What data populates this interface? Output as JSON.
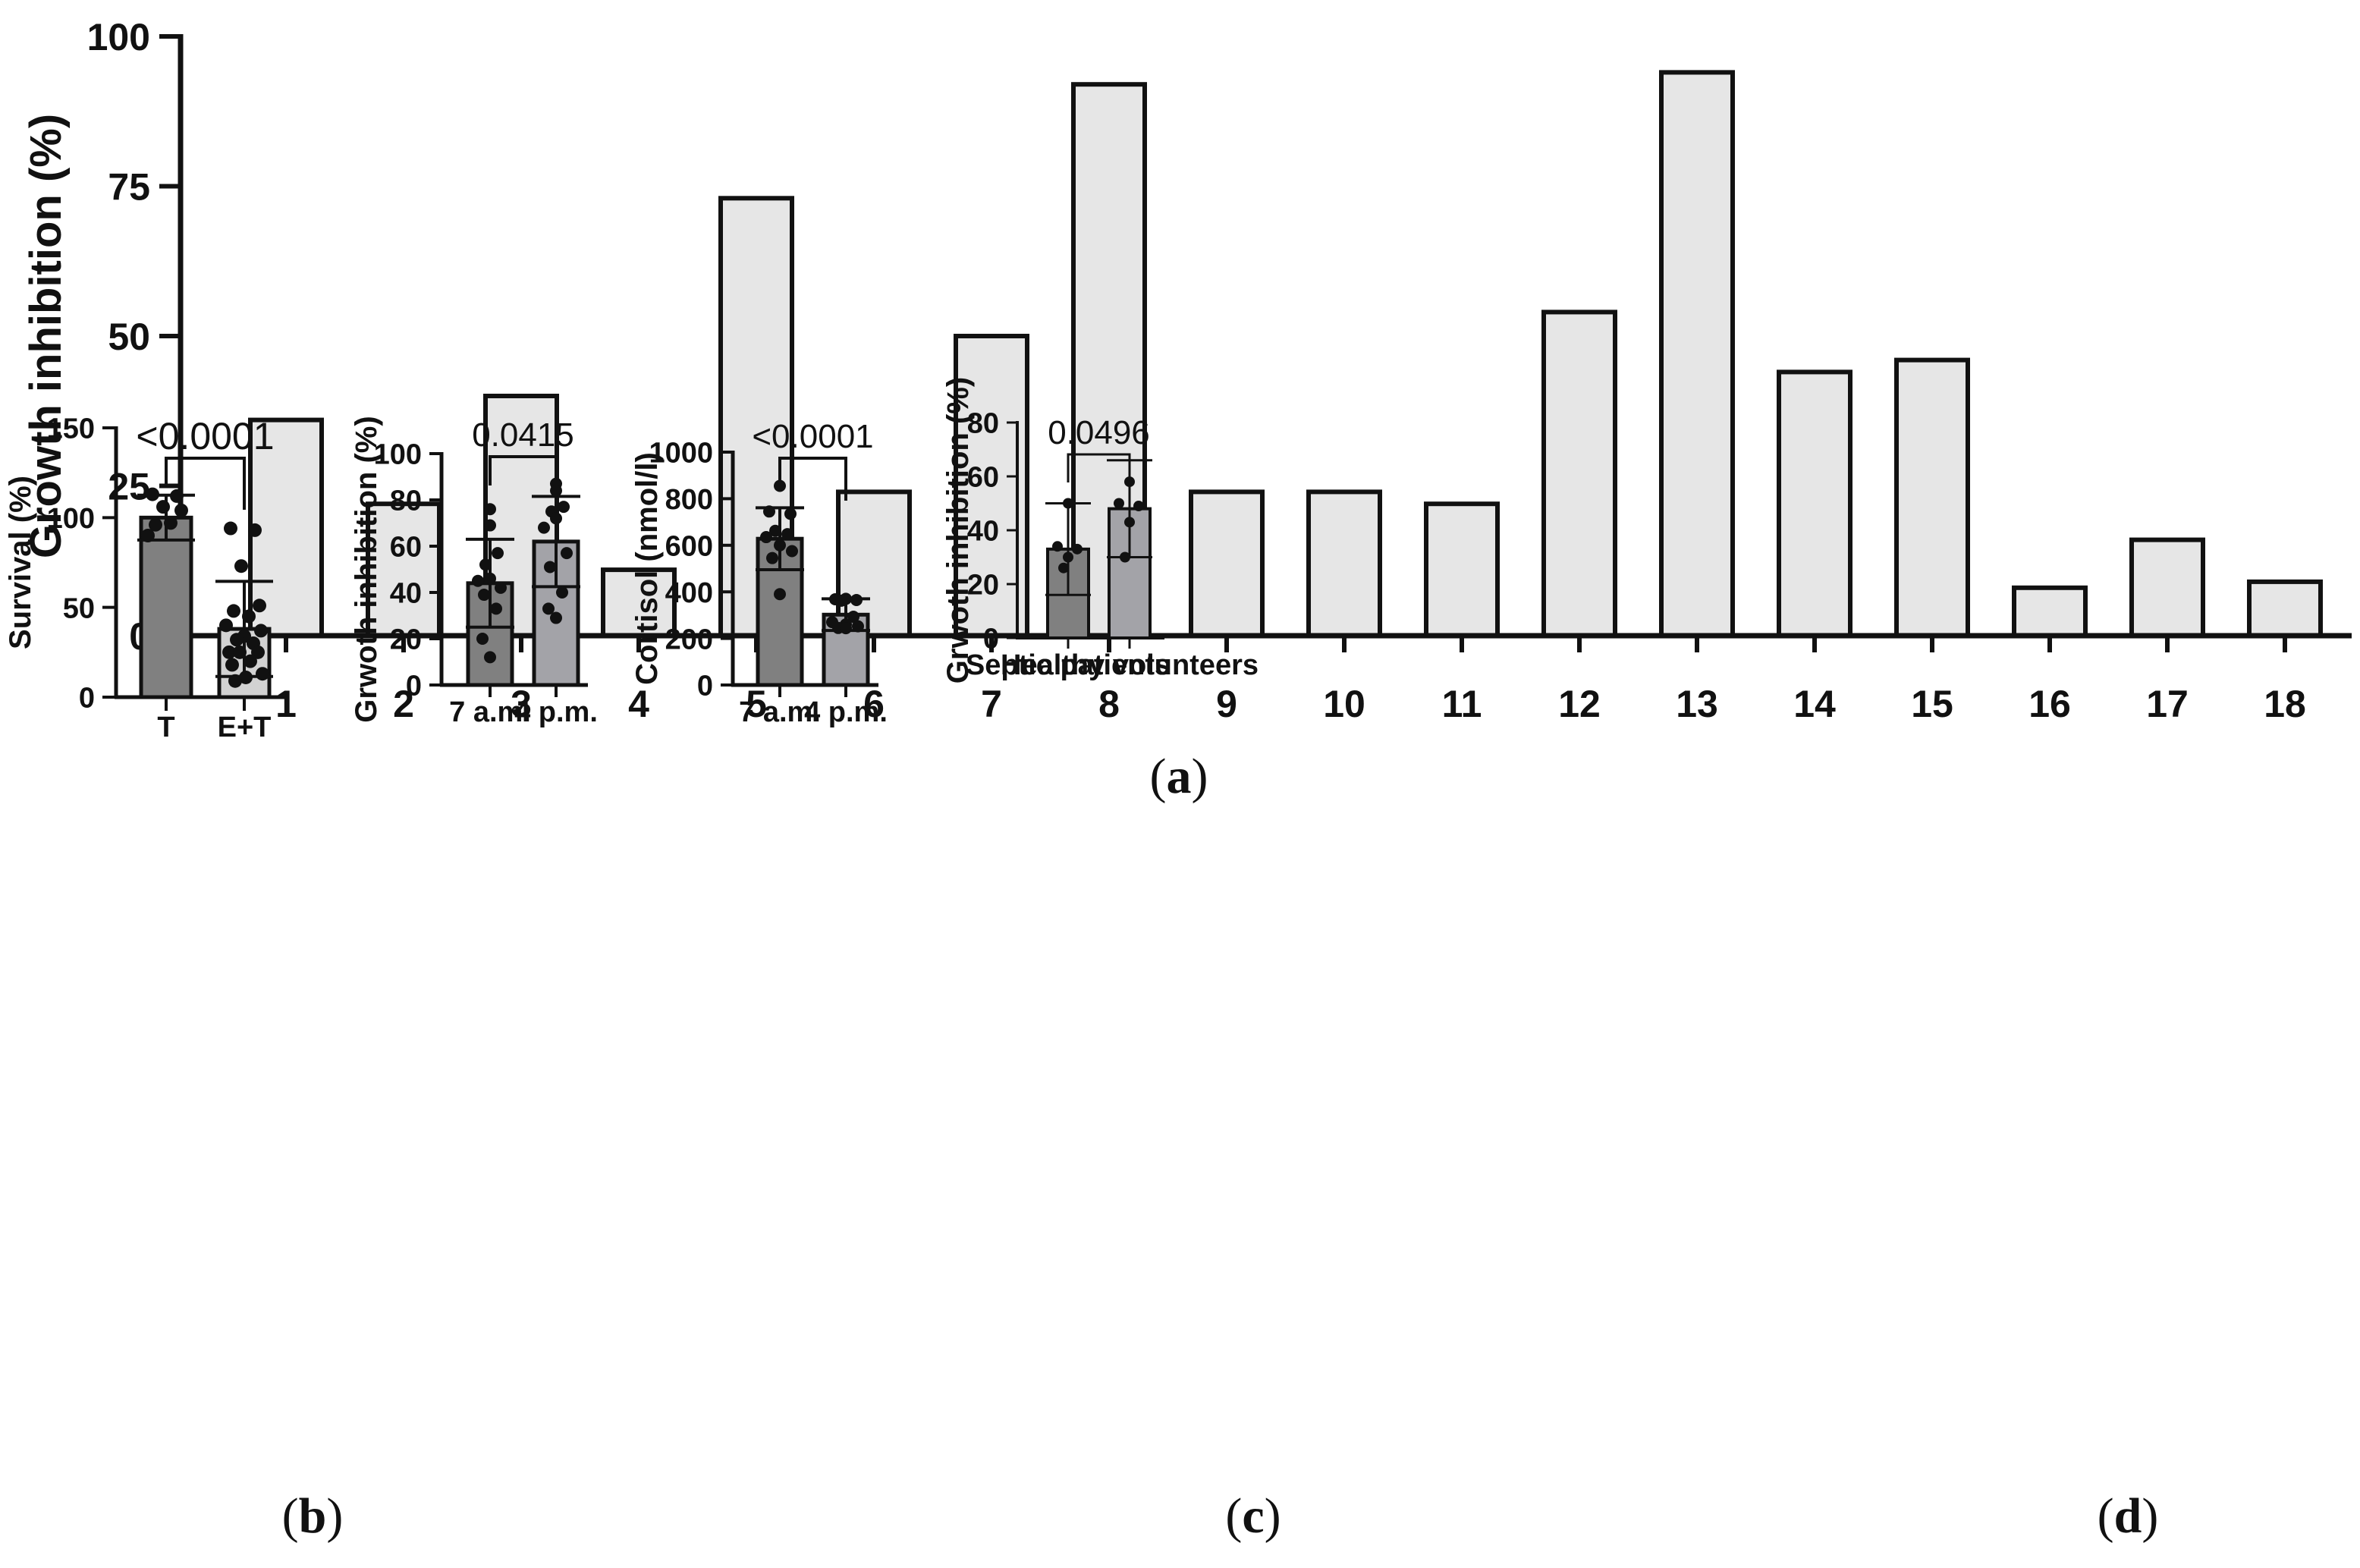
{
  "figure": {
    "panel_labels": {
      "a": "(a)",
      "b": "(b)",
      "c": "(c)",
      "d": "(d)",
      "a_letter": "a",
      "b_letter": "b",
      "c_letter": "c",
      "d_letter": "d"
    }
  },
  "colors": {
    "bar_light": "#e6e6e6",
    "bar_dark": "#808080",
    "bar_mid": "#a3a3a8",
    "bar_lighter": "#d2d2d2",
    "ink": "#111111"
  },
  "chart_data": [
    {
      "id": "a",
      "type": "bar",
      "title": "",
      "xlabel": "",
      "ylabel": "Growth inhibition (%)",
      "ylim": [
        0,
        100
      ],
      "yticks": [
        0,
        25,
        50,
        75,
        100
      ],
      "categories": [
        "1",
        "2",
        "3",
        "4",
        "5",
        "6",
        "7",
        "8",
        "9",
        "10",
        "11",
        "12",
        "13",
        "14",
        "15",
        "16",
        "17",
        "18"
      ],
      "values": [
        36,
        22,
        40,
        11,
        73,
        24,
        50,
        92,
        24,
        24,
        22,
        54,
        94,
        44,
        46,
        8,
        16,
        9
      ]
    },
    {
      "id": "b",
      "type": "bar",
      "ylabel": "Survival (%)",
      "ylim": [
        0,
        150
      ],
      "yticks": [
        0,
        50,
        100,
        150
      ],
      "categories": [
        "T",
        "E+T"
      ],
      "means": [
        100,
        38
      ],
      "sd": [
        12.5,
        26.5
      ],
      "points": [
        [
          113,
          112,
          106,
          104,
          96,
          97,
          90
        ],
        [
          94,
          93,
          73,
          51,
          48,
          45,
          40,
          37,
          34,
          32,
          30,
          25,
          25,
          25,
          20,
          18,
          13,
          11,
          9
        ]
      ],
      "bracket_label": "<0.0001"
    },
    {
      "id": "c1",
      "type": "bar",
      "ylabel": "Grwoth inhibition (%)",
      "ylim": [
        0,
        100
      ],
      "yticks": [
        0,
        20,
        40,
        60,
        80,
        100
      ],
      "categories": [
        "7 a.m.",
        "4 p.m."
      ],
      "means": [
        44,
        62
      ],
      "sd": [
        19,
        19.5
      ],
      "points": [
        [
          76,
          69,
          57,
          52,
          46,
          45,
          42,
          39,
          33,
          20,
          12
        ],
        [
          87,
          84,
          77,
          75,
          72,
          68,
          57,
          51,
          40,
          33,
          29
        ]
      ],
      "bracket_label": "0.0415"
    },
    {
      "id": "c2",
      "type": "bar",
      "ylabel": "Cortisol (nmol/l)",
      "ylim": [
        0,
        1000
      ],
      "yticks": [
        0,
        200,
        400,
        600,
        800,
        1000
      ],
      "categories": [
        "7 a.m.",
        "4 p.m."
      ],
      "means": [
        628,
        302
      ],
      "sd": [
        133,
        68
      ],
      "points": [
        [
          855,
          745,
          735,
          662,
          648,
          635,
          600,
          575,
          545,
          390
        ],
        [
          370,
          368,
          365,
          362,
          293,
          270,
          260,
          252,
          245,
          244
        ]
      ],
      "bracket_label": "<0.0001"
    },
    {
      "id": "d",
      "type": "bar",
      "ylabel": "Grwoth inhibition (%)",
      "ylim": [
        0,
        80
      ],
      "yticks": [
        0,
        20,
        40,
        60,
        80
      ],
      "categories": [
        "Septic patients",
        "Healthy volunteers"
      ],
      "category_lines": [
        [
          "Septic",
          "patients"
        ],
        [
          "Healthy",
          "volunteers"
        ]
      ],
      "means": [
        33,
        48
      ],
      "sd": [
        17,
        18
      ],
      "points": [
        [
          50,
          34,
          33,
          30,
          26
        ],
        [
          58,
          50,
          49,
          43,
          30
        ]
      ],
      "bracket_label": "0.0496"
    }
  ]
}
